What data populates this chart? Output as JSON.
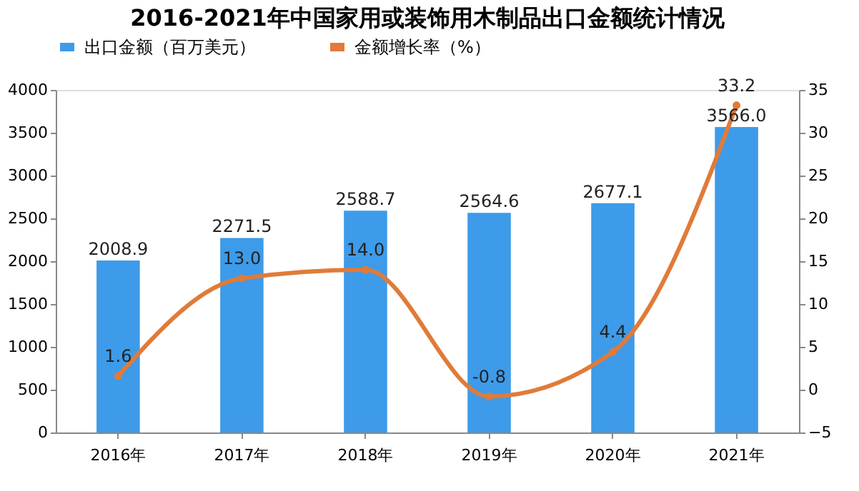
{
  "chart_data": {
    "type": "bar",
    "title": "2016-2021年中国家用或装饰用木制品出口金额统计情况",
    "categories": [
      "2016年",
      "2017年",
      "2018年",
      "2019年",
      "2020年",
      "2021年"
    ],
    "series": [
      {
        "name": "出口金额（百万美元）",
        "color": "#3d9be9",
        "values": [
          2008.9,
          2271.5,
          2588.7,
          2564.6,
          2677.1,
          3566
        ],
        "value_labels": [
          "2008.9",
          "2271.5",
          "2588.7",
          "2564.6",
          "2677.1",
          "3566.0"
        ]
      },
      {
        "name": "金额增长率（%）",
        "color": "#e07b39",
        "type": "line",
        "axis": "y2",
        "marker": "circle",
        "values": [
          1.6,
          13,
          14,
          -0.8,
          4.4,
          33.2
        ],
        "value_labels": [
          "1.6",
          "13.0",
          "14.0",
          "-0.8",
          "4.4",
          "33.2"
        ]
      }
    ],
    "ylim": [
      0,
      4000
    ],
    "yticks": [
      0,
      500,
      1000,
      1500,
      2000,
      2500,
      3000,
      3500,
      4000
    ],
    "y2lim": [
      -5,
      35
    ],
    "y2ticks": [
      -5,
      0,
      5,
      10,
      15,
      20,
      25,
      30,
      35
    ],
    "grid": false,
    "legend": "top"
  }
}
